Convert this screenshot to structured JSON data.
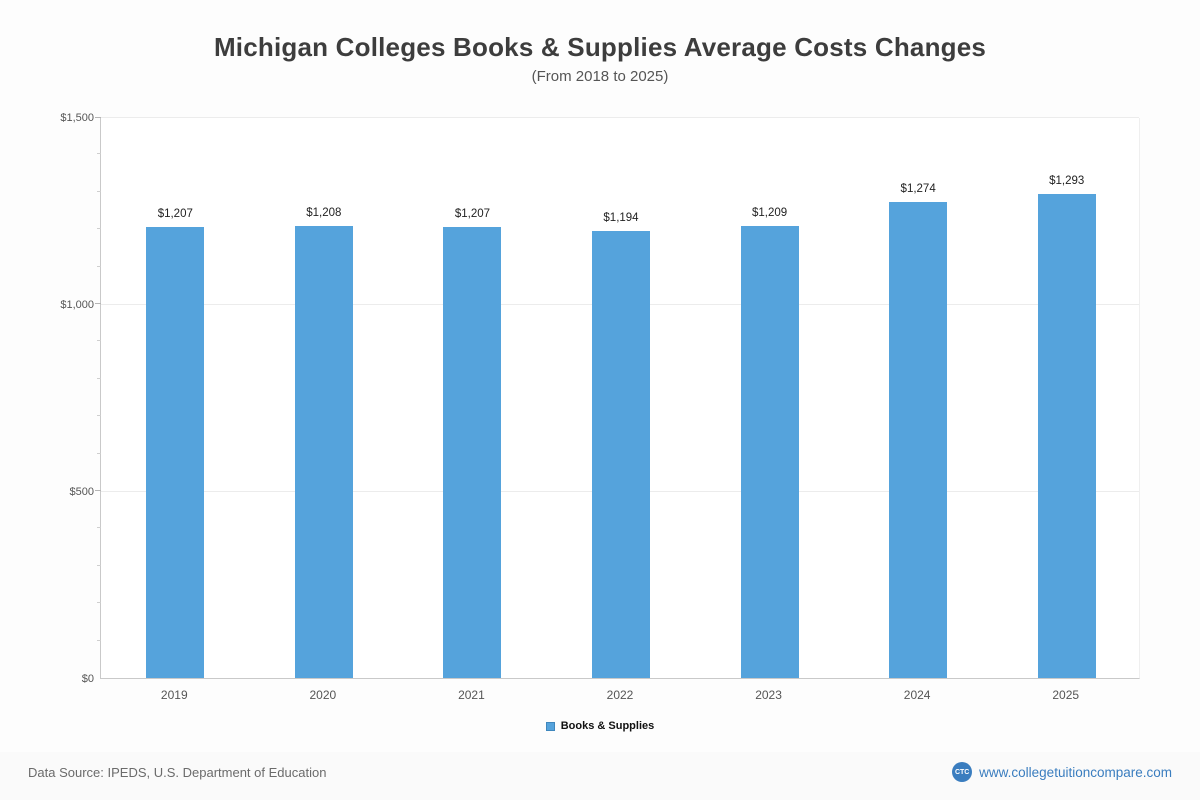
{
  "chart_data": {
    "type": "bar",
    "title": "Michigan Colleges  Books & Supplies Average Costs Changes",
    "subtitle": "(From 2018 to 2025)",
    "categories": [
      "2019",
      "2020",
      "2021",
      "2022",
      "2023",
      "2024",
      "2025"
    ],
    "series": [
      {
        "name": "Books & Supplies",
        "values": [
          1207,
          1208,
          1207,
          1194,
          1209,
          1274,
          1293
        ],
        "labels": [
          "$1,207",
          "$1,208",
          "$1,207",
          "$1,194",
          "$1,209",
          "$1,274",
          "$1,293"
        ],
        "color": "#55a3dc"
      }
    ],
    "ylim": [
      0,
      1500
    ],
    "yticks": [
      {
        "value": 0,
        "label": "$0"
      },
      {
        "value": 500,
        "label": "$500"
      },
      {
        "value": 1000,
        "label": "$1,000"
      },
      {
        "value": 1500,
        "label": "$1,500"
      }
    ],
    "minor_tick_step": 100,
    "grid": true,
    "legend_position": "bottom"
  },
  "legend": {
    "label": "Books & Supplies"
  },
  "footer": {
    "source": "Data Source: IPEDS, U.S. Department of Education",
    "logo_text": "CTC",
    "site_label": "www.collegetuitioncompare.com"
  }
}
